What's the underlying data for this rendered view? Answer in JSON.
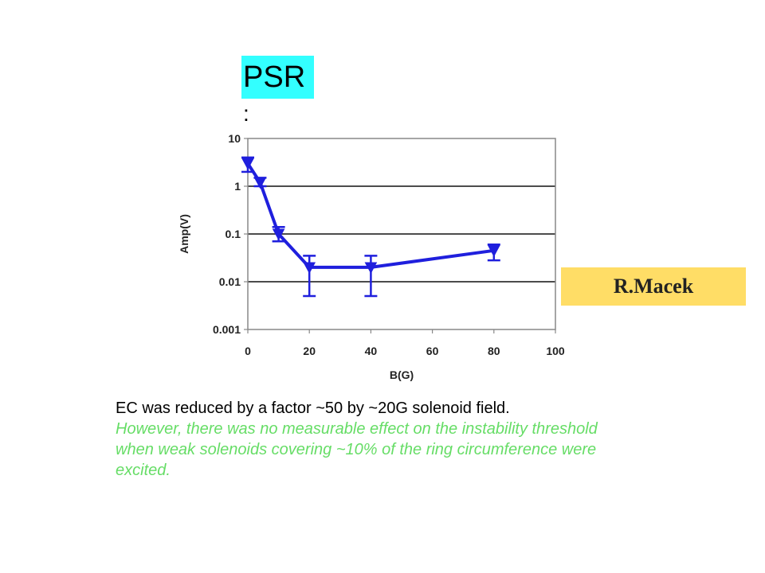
{
  "header": {
    "label": "PSR",
    "colon": ":",
    "label_bg": "#33ffff"
  },
  "author": {
    "name": "R.Macek",
    "bg": "#ffdd66"
  },
  "caption": {
    "main": "EC was reduced by a factor ~50 by ~20G solenoid field.",
    "note": "However, there was no measurable effect on the instability threshold when weak solenoids covering ~10% of  the ring circumference were excited.",
    "note_color": "#66dd66"
  },
  "chart_data": {
    "type": "line",
    "title": "",
    "xlabel": "B(G)",
    "ylabel": "Amp(V)",
    "xlim": [
      0,
      100
    ],
    "ylim": [
      0.001,
      10
    ],
    "y_scale": "log",
    "x_ticks": [
      0,
      20,
      40,
      60,
      80,
      100
    ],
    "x_tick_labels": [
      "0",
      "20",
      "40",
      "60",
      "80",
      "100"
    ],
    "y_ticks": [
      0.001,
      0.01,
      0.1,
      1,
      10
    ],
    "y_tick_labels": [
      "0.001",
      "0.01",
      "0.1",
      "1",
      "10"
    ],
    "grid": "horizontal",
    "series": [
      {
        "color": "#1f1fdd",
        "points": [
          {
            "x": 0,
            "y": 3.0,
            "err_low": 2.0,
            "err_high": 4.0
          },
          {
            "x": 4,
            "y": 1.2,
            "err_low": 1.0,
            "err_high": 1.5
          },
          {
            "x": 10,
            "y": 0.1,
            "err_low": 0.07,
            "err_high": 0.14
          },
          {
            "x": 20,
            "y": 0.02,
            "err_low": 0.005,
            "err_high": 0.035
          },
          {
            "x": 40,
            "y": 0.02,
            "err_low": 0.005,
            "err_high": 0.035
          },
          {
            "x": 80,
            "y": 0.045,
            "err_low": 0.028,
            "err_high": 0.06
          }
        ]
      }
    ]
  }
}
